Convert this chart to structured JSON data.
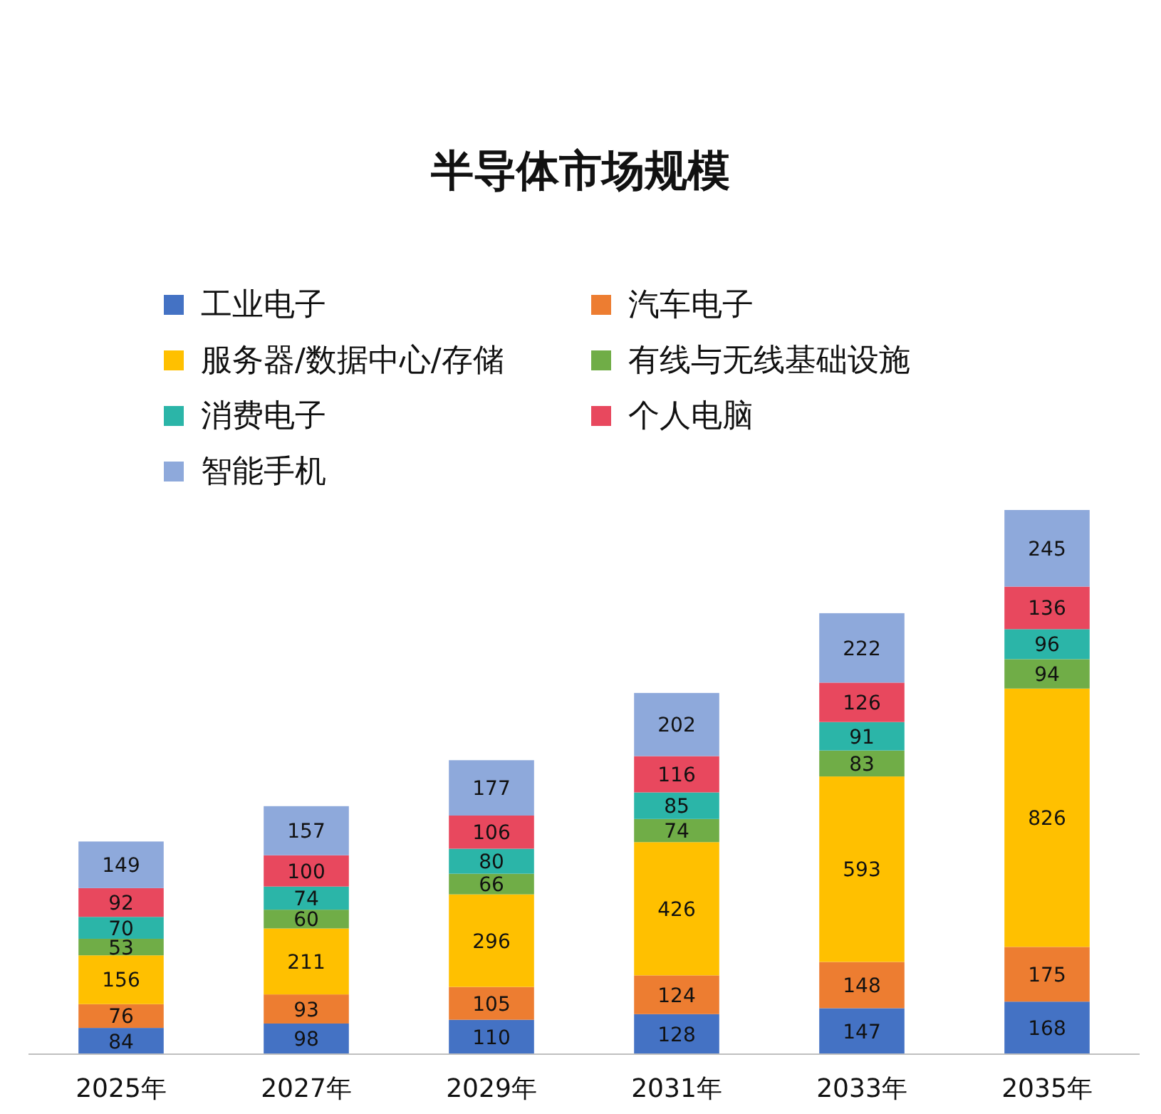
{
  "chart_data": {
    "type": "bar",
    "stacked": true,
    "title": "半导体市场规模",
    "legend": "top",
    "data_labels": true,
    "categories": [
      "2025年",
      "2027年",
      "2029年",
      "2031年",
      "2033年",
      "2035年"
    ],
    "series": [
      {
        "name": "工业电子",
        "color": "#4472c4",
        "values": [
          84,
          98,
          110,
          128,
          147,
          168
        ]
      },
      {
        "name": "汽车电子",
        "color": "#ed7d31",
        "values": [
          76,
          93,
          105,
          124,
          148,
          175
        ]
      },
      {
        "name": "服务器/数据中心/存储",
        "color": "#ffc000",
        "values": [
          156,
          211,
          296,
          426,
          593,
          826
        ]
      },
      {
        "name": "有线与无线基础设施",
        "color": "#70ad47",
        "values": [
          53,
          60,
          66,
          74,
          83,
          94
        ]
      },
      {
        "name": "消费电子",
        "color": "#2bb5a8",
        "values": [
          70,
          74,
          80,
          85,
          91,
          96
        ]
      },
      {
        "name": "个人电脑",
        "color": "#e8485e",
        "values": [
          92,
          100,
          106,
          116,
          126,
          136
        ]
      },
      {
        "name": "智能手机",
        "color": "#8ea9db",
        "values": [
          149,
          157,
          177,
          202,
          222,
          245
        ]
      }
    ]
  }
}
